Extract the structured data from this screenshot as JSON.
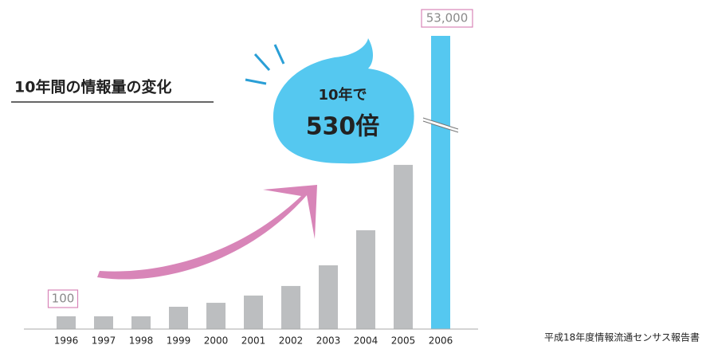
{
  "chart_data": {
    "type": "bar",
    "title": "10年間の情報量の変化",
    "callout": [
      "10年で",
      "530倍"
    ],
    "source": "平成18年度情報流通センサス報告書",
    "categories": [
      "1996",
      "1997",
      "1998",
      "1999",
      "2000",
      "2001",
      "2002",
      "2003",
      "2004",
      "2005",
      "2006"
    ],
    "values": [
      100,
      100,
      100,
      175,
      206,
      263,
      338,
      500,
      775,
      1288,
      53000
    ],
    "value_labels": [
      "100",
      null,
      null,
      null,
      null,
      null,
      null,
      null,
      null,
      null,
      "53,000"
    ],
    "colors": [
      "#bcbec0",
      "#bcbec0",
      "#bcbec0",
      "#bcbec0",
      "#bcbec0",
      "#bcbec0",
      "#bcbec0",
      "#bcbec0",
      "#bcbec0",
      "#bcbec0",
      "#55c8f0"
    ]
  }
}
